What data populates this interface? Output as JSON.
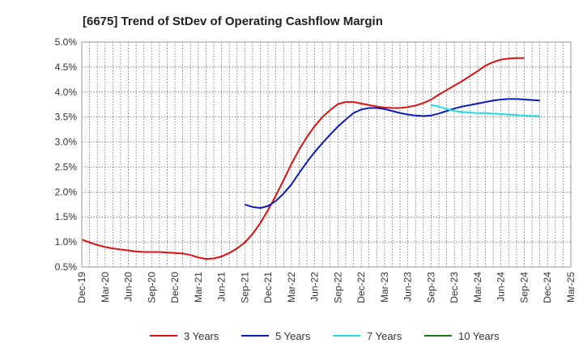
{
  "chart_data": {
    "type": "line",
    "title": "[6675]  Trend of StDev of Operating Cashflow Margin",
    "xlabel": "",
    "ylabel": "",
    "x_ticks": [
      "Dec-19",
      "Mar-20",
      "Jun-20",
      "Sep-20",
      "Dec-20",
      "Mar-21",
      "Jun-21",
      "Sep-21",
      "Dec-21",
      "Mar-22",
      "Jun-22",
      "Sep-22",
      "Dec-22",
      "Mar-23",
      "Jun-23",
      "Sep-23",
      "Dec-23",
      "Mar-24",
      "Jun-24",
      "Sep-24",
      "Dec-24",
      "Mar-25"
    ],
    "y_ticks": [
      "0.5%",
      "1.0%",
      "1.5%",
      "2.0%",
      "2.5%",
      "3.0%",
      "3.5%",
      "4.0%",
      "4.5%",
      "5.0%"
    ],
    "ylim": [
      0.5,
      5.0
    ],
    "grid": true,
    "legend_position": "bottom",
    "series": [
      {
        "name": "3 Years",
        "color": "#dd1111",
        "points": [
          [
            "Dec-19",
            1.05
          ],
          [
            "Jan-20",
            0.99
          ],
          [
            "Feb-20",
            0.94
          ],
          [
            "Mar-20",
            0.9
          ],
          [
            "Apr-20",
            0.87
          ],
          [
            "May-20",
            0.85
          ],
          [
            "Jun-20",
            0.83
          ],
          [
            "Jul-20",
            0.81
          ],
          [
            "Aug-20",
            0.8
          ],
          [
            "Sep-20",
            0.8
          ],
          [
            "Oct-20",
            0.8
          ],
          [
            "Nov-20",
            0.79
          ],
          [
            "Dec-20",
            0.78
          ],
          [
            "Jan-21",
            0.77
          ],
          [
            "Feb-21",
            0.74
          ],
          [
            "Mar-21",
            0.69
          ],
          [
            "Apr-21",
            0.66
          ],
          [
            "May-21",
            0.67
          ],
          [
            "Jun-21",
            0.71
          ],
          [
            "Jul-21",
            0.78
          ],
          [
            "Aug-21",
            0.87
          ],
          [
            "Sep-21",
            0.99
          ],
          [
            "Oct-21",
            1.16
          ],
          [
            "Nov-21",
            1.38
          ],
          [
            "Dec-21",
            1.64
          ],
          [
            "Jan-22",
            1.93
          ],
          [
            "Feb-22",
            2.24
          ],
          [
            "Mar-22",
            2.56
          ],
          [
            "Apr-22",
            2.85
          ],
          [
            "May-22",
            3.1
          ],
          [
            "Jun-22",
            3.32
          ],
          [
            "Jul-22",
            3.5
          ],
          [
            "Aug-22",
            3.64
          ],
          [
            "Sep-22",
            3.76
          ],
          [
            "Oct-22",
            3.8
          ],
          [
            "Nov-22",
            3.8
          ],
          [
            "Dec-22",
            3.77
          ],
          [
            "Jan-23",
            3.74
          ],
          [
            "Feb-23",
            3.71
          ],
          [
            "Mar-23",
            3.69
          ],
          [
            "Apr-23",
            3.68
          ],
          [
            "May-23",
            3.68
          ],
          [
            "Jun-23",
            3.7
          ],
          [
            "Jul-23",
            3.73
          ],
          [
            "Aug-23",
            3.78
          ],
          [
            "Sep-23",
            3.85
          ],
          [
            "Oct-23",
            3.95
          ],
          [
            "Nov-23",
            4.04
          ],
          [
            "Dec-23",
            4.13
          ],
          [
            "Jan-24",
            4.22
          ],
          [
            "Feb-24",
            4.32
          ],
          [
            "Mar-24",
            4.42
          ],
          [
            "Apr-24",
            4.53
          ],
          [
            "May-24",
            4.6
          ],
          [
            "Jun-24",
            4.65
          ],
          [
            "Jul-24",
            4.67
          ],
          [
            "Aug-24",
            4.68
          ],
          [
            "Sep-24",
            4.68
          ]
        ]
      },
      {
        "name": "5 Years",
        "color": "#0a1bbf",
        "points": [
          [
            "Sep-21",
            1.75
          ],
          [
            "Oct-21",
            1.7
          ],
          [
            "Nov-21",
            1.68
          ],
          [
            "Dec-21",
            1.72
          ],
          [
            "Jan-22",
            1.82
          ],
          [
            "Feb-22",
            1.97
          ],
          [
            "Mar-22",
            2.15
          ],
          [
            "Apr-22",
            2.38
          ],
          [
            "May-22",
            2.6
          ],
          [
            "Jun-22",
            2.8
          ],
          [
            "Jul-22",
            2.98
          ],
          [
            "Aug-22",
            3.15
          ],
          [
            "Sep-22",
            3.31
          ],
          [
            "Oct-22",
            3.45
          ],
          [
            "Nov-22",
            3.58
          ],
          [
            "Dec-22",
            3.65
          ],
          [
            "Jan-23",
            3.68
          ],
          [
            "Feb-23",
            3.68
          ],
          [
            "Mar-23",
            3.66
          ],
          [
            "Apr-23",
            3.62
          ],
          [
            "May-23",
            3.58
          ],
          [
            "Jun-23",
            3.55
          ],
          [
            "Jul-23",
            3.53
          ],
          [
            "Aug-23",
            3.52
          ],
          [
            "Sep-23",
            3.53
          ],
          [
            "Oct-23",
            3.57
          ],
          [
            "Nov-23",
            3.62
          ],
          [
            "Dec-23",
            3.67
          ],
          [
            "Jan-24",
            3.71
          ],
          [
            "Feb-24",
            3.74
          ],
          [
            "Mar-24",
            3.77
          ],
          [
            "Apr-24",
            3.8
          ],
          [
            "May-24",
            3.83
          ],
          [
            "Jun-24",
            3.85
          ],
          [
            "Jul-24",
            3.86
          ],
          [
            "Aug-24",
            3.86
          ],
          [
            "Sep-24",
            3.85
          ],
          [
            "Oct-24",
            3.84
          ],
          [
            "Nov-24",
            3.83
          ]
        ]
      },
      {
        "name": "7 Years",
        "color": "#22dddd",
        "points": [
          [
            "Sep-23",
            3.74
          ],
          [
            "Oct-23",
            3.71
          ],
          [
            "Nov-23",
            3.66
          ],
          [
            "Dec-23",
            3.62
          ],
          [
            "Jan-24",
            3.6
          ],
          [
            "Feb-24",
            3.59
          ],
          [
            "Mar-24",
            3.58
          ],
          [
            "Apr-24",
            3.58
          ],
          [
            "May-24",
            3.57
          ],
          [
            "Jun-24",
            3.56
          ],
          [
            "Jul-24",
            3.55
          ],
          [
            "Aug-24",
            3.54
          ],
          [
            "Sep-24",
            3.53
          ],
          [
            "Oct-24",
            3.52
          ],
          [
            "Nov-24",
            3.52
          ]
        ]
      },
      {
        "name": "10 Years",
        "color": "#1a7a1a",
        "points": []
      }
    ]
  }
}
